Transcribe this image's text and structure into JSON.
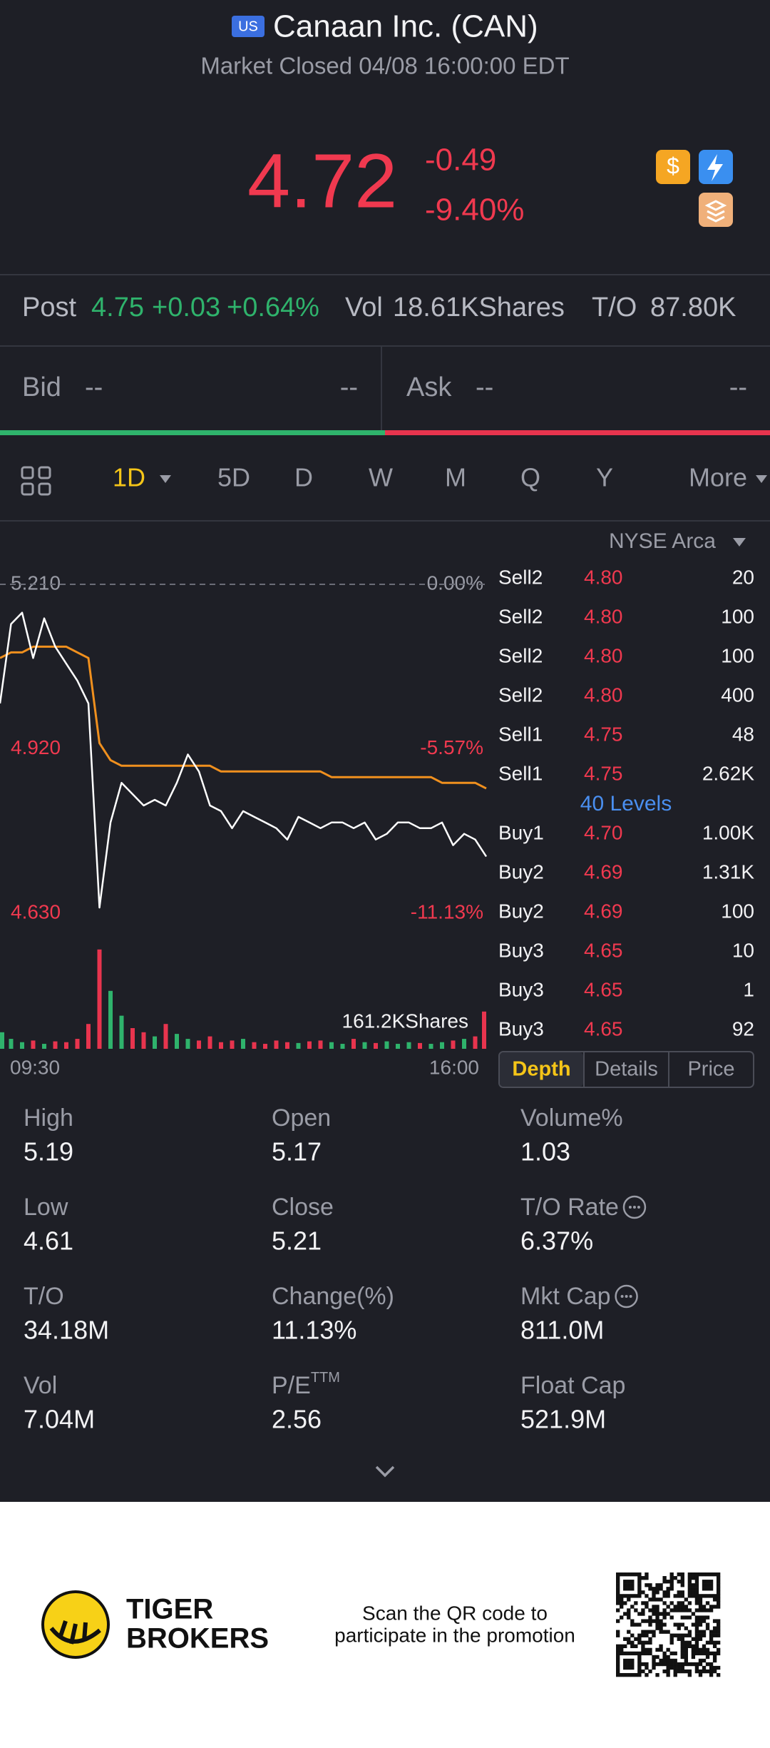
{
  "header": {
    "badge": "US",
    "title": "Canaan Inc. (CAN)",
    "status": "Market Closed 04/08 16:00:00 EDT"
  },
  "quote": {
    "price": "4.72",
    "change": "-0.49",
    "change_pct": "-9.40%"
  },
  "post": {
    "label": "Post",
    "price": "4.75",
    "change": "+0.03",
    "change_pct": "+0.64%",
    "vol_label": "Vol",
    "vol": "18.61KShares",
    "to_label": "T/O",
    "to": "87.80K"
  },
  "bid_ask": {
    "bid_label": "Bid",
    "bid": "--",
    "bid_size": "--",
    "ask_label": "Ask",
    "ask": "--",
    "ask_size": "--"
  },
  "periods": [
    "1D",
    "5D",
    "D",
    "W",
    "M",
    "Q",
    "Y",
    "More"
  ],
  "exchange": "NYSE Arca",
  "chart_data": {
    "type": "line",
    "categories": [
      "09:30",
      null,
      null,
      null,
      null,
      null,
      null,
      null,
      null,
      null,
      null,
      null,
      null,
      null,
      null,
      null,
      null,
      null,
      null,
      null,
      null,
      null,
      null,
      null,
      null,
      null,
      null,
      null,
      null,
      null,
      null,
      null,
      null,
      null,
      null,
      null,
      null,
      null,
      null,
      null,
      null,
      null,
      null,
      null,
      "16:00"
    ],
    "series": [
      {
        "color": "#ffffff",
        "values": [
          5.0,
          5.14,
          5.16,
          5.08,
          5.15,
          5.1,
          5.07,
          5.04,
          5.0,
          4.64,
          4.79,
          4.86,
          4.84,
          4.82,
          4.83,
          4.82,
          4.86,
          4.91,
          4.88,
          4.82,
          4.81,
          4.78,
          4.81,
          4.8,
          4.79,
          4.78,
          4.76,
          4.8,
          4.79,
          4.78,
          4.79,
          4.79,
          4.78,
          4.79,
          4.76,
          4.77,
          4.79,
          4.79,
          4.78,
          4.78,
          4.79,
          4.75,
          4.77,
          4.76,
          4.73
        ]
      },
      {
        "color": "#f0901e",
        "values": [
          5.08,
          5.09,
          5.09,
          5.1,
          5.1,
          5.1,
          5.1,
          5.09,
          5.08,
          4.93,
          4.9,
          4.89,
          4.89,
          4.89,
          4.89,
          4.89,
          4.89,
          4.89,
          4.89,
          4.89,
          4.88,
          4.88,
          4.88,
          4.88,
          4.88,
          4.88,
          4.88,
          4.88,
          4.88,
          4.88,
          4.87,
          4.87,
          4.87,
          4.87,
          4.87,
          4.87,
          4.87,
          4.87,
          4.87,
          4.87,
          4.86,
          4.86,
          4.86,
          4.86,
          4.85
        ]
      }
    ],
    "ylim": [
      4.63,
      5.21
    ],
    "yticks": [
      {
        "value": 5.21,
        "label": "5.210"
      },
      {
        "value": 4.92,
        "label": "4.920"
      },
      {
        "value": 4.63,
        "label": "4.630"
      }
    ],
    "y2lim": [
      -11.13,
      0
    ],
    "y2ticks": [
      {
        "value": 0,
        "label": "0.00%"
      },
      {
        "value": -5.57,
        "label": "-5.57%"
      },
      {
        "value": -11.13,
        "label": "-11.13%"
      }
    ],
    "volume": {
      "values": [
        20,
        12,
        8,
        10,
        6,
        9,
        8,
        12,
        30,
        120,
        70,
        40,
        25,
        20,
        15,
        30,
        18,
        12,
        10,
        15,
        8,
        10,
        12,
        8,
        6,
        10,
        8,
        7,
        9,
        10,
        8,
        6,
        12,
        8,
        7,
        9,
        6,
        8,
        7,
        6,
        8,
        10,
        12,
        15,
        45
      ],
      "ylim": [
        0,
        161.2
      ],
      "yticks": [
        {
          "value": 161.2,
          "label": "161.2KShares"
        }
      ],
      "up_color": "#2fb36c",
      "down_color": "#e8344e"
    }
  },
  "order_book": {
    "rows": [
      [
        "Sell2",
        "4.80",
        "20"
      ],
      [
        "Sell2",
        "4.80",
        "100"
      ],
      [
        "Sell2",
        "4.80",
        "100"
      ],
      [
        "Sell2",
        "4.80",
        "400"
      ],
      [
        "Sell1",
        "4.75",
        "48"
      ],
      [
        "Sell1",
        "4.75",
        "2.62K"
      ],
      [
        "Buy1",
        "4.70",
        "1.00K"
      ],
      [
        "Buy2",
        "4.69",
        "1.31K"
      ],
      [
        "Buy2",
        "4.69",
        "100"
      ],
      [
        "Buy3",
        "4.65",
        "10"
      ],
      [
        "Buy3",
        "4.65",
        "1"
      ],
      [
        "Buy3",
        "4.65",
        "92"
      ]
    ],
    "levels": "40 Levels",
    "tabs": [
      "Depth",
      "Details",
      "Price"
    ]
  },
  "stats": [
    {
      "label": "High",
      "value": "5.19"
    },
    {
      "label": "Open",
      "value": "5.17"
    },
    {
      "label": "Volume%",
      "value": "1.03"
    },
    {
      "label": "Low",
      "value": "4.61"
    },
    {
      "label": "Close",
      "value": "5.21"
    },
    {
      "label": "T/O Rate",
      "value": "6.37%",
      "info": true
    },
    {
      "label": "T/O",
      "value": "34.18M"
    },
    {
      "label": "Change(%)",
      "value": "11.13%"
    },
    {
      "label": "Mkt Cap",
      "value": "811.0M",
      "info": true
    },
    {
      "label": "Vol",
      "value": "7.04M"
    },
    {
      "label": "P/E",
      "sup": "TTM",
      "value": "2.56"
    },
    {
      "label": "Float Cap",
      "value": "521.9M"
    }
  ],
  "footer": {
    "brand": [
      "TIGER",
      "BROKERS"
    ],
    "promo": [
      "Scan the QR code to",
      "participate in the promotion"
    ]
  }
}
